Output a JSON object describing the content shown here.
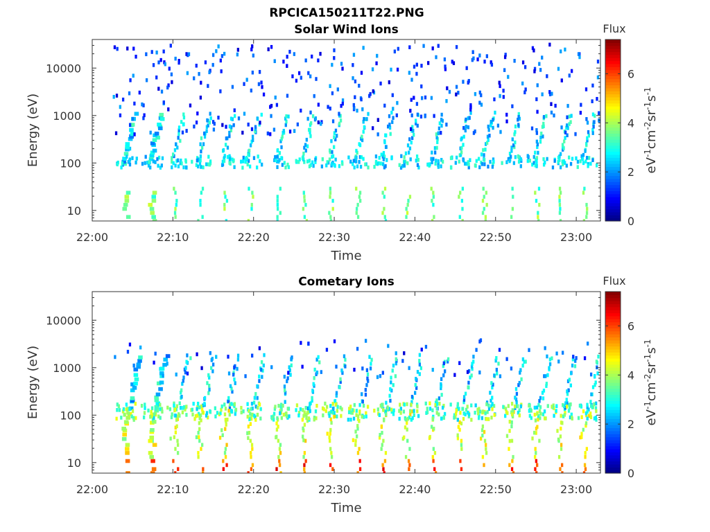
{
  "figure": {
    "title": "RPCICA150211T22.PNG"
  },
  "colorbar": {
    "label": "Flux",
    "unit_main": "eV",
    "unit_text": "eV-1cm-2sr-1s-1",
    "ticks": [
      "0",
      "2",
      "4",
      "6"
    ],
    "range": [
      0,
      7.4
    ],
    "colormap": "jet"
  },
  "chart_data": [
    {
      "type": "heatmap",
      "title": "Solar Wind Ions",
      "xlabel": "Time",
      "ylabel": "Energy (eV)",
      "x_ticks": [
        "22:00",
        "22:10",
        "22:20",
        "22:30",
        "22:40",
        "22:50",
        "23:00"
      ],
      "y_ticks": [
        "10",
        "100",
        "1000",
        "10000"
      ],
      "x_range_minutes": [
        0,
        63
      ],
      "y_range_eV": [
        6,
        40000
      ],
      "y_scale": "log",
      "z_range": [
        0,
        7.4
      ],
      "bursts_minutes": [
        4.0,
        7.2,
        10.2,
        13.3,
        16.3,
        19.5,
        23.0,
        26.3,
        29.5,
        32.8,
        36.0,
        39.0,
        42.2,
        45.5,
        48.5,
        51.8,
        55.0,
        58.0,
        61.0
      ]
    },
    {
      "type": "heatmap",
      "title": "Cometary Ions",
      "xlabel": "Time",
      "ylabel": "Energy (eV)",
      "x_ticks": [
        "22:00",
        "22:10",
        "22:20",
        "22:30",
        "22:40",
        "22:50",
        "23:00"
      ],
      "y_ticks": [
        "10",
        "100",
        "1000",
        "10000"
      ],
      "x_range_minutes": [
        0,
        63
      ],
      "y_range_eV": [
        6,
        40000
      ],
      "y_scale": "log",
      "z_range": [
        0,
        7.4
      ],
      "bursts_minutes": [
        4.0,
        7.2,
        10.2,
        13.3,
        16.3,
        19.5,
        23.0,
        26.3,
        29.5,
        32.8,
        36.0,
        39.0,
        42.2,
        45.5,
        48.5,
        51.8,
        55.0,
        58.0,
        61.0
      ]
    }
  ]
}
